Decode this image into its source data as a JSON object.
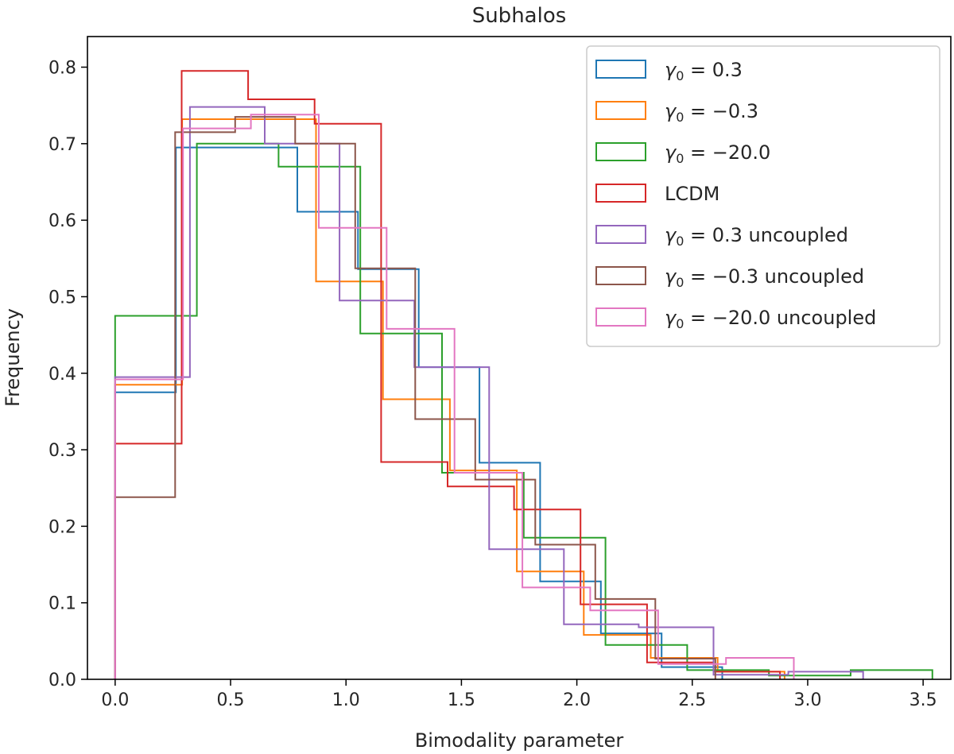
{
  "chart_data": {
    "type": "histogram-step",
    "title": "Subhalos",
    "xlabel": "Bimodality parameter",
    "ylabel": "Frequency",
    "xlim": [
      -0.12,
      3.62
    ],
    "ylim": [
      0.0,
      0.84
    ],
    "xticks": [
      0.0,
      0.5,
      1.0,
      1.5,
      2.0,
      2.5,
      3.0,
      3.5
    ],
    "xtick_labels": [
      "0.0",
      "0.5",
      "1.0",
      "1.5",
      "2.0",
      "2.5",
      "3.0",
      "3.5"
    ],
    "yticks": [
      0.0,
      0.1,
      0.2,
      0.3,
      0.4,
      0.5,
      0.6,
      0.7,
      0.8
    ],
    "ytick_labels": [
      "0.0",
      "0.1",
      "0.2",
      "0.3",
      "0.4",
      "0.5",
      "0.6",
      "0.7",
      "0.8"
    ],
    "legend_position": "upper-right",
    "series": [
      {
        "name": "γ0 = 0.3",
        "label_main": "γ",
        "label_sub": "0",
        "label_rest": " = 0.3",
        "color": "#1f77b4",
        "edges": [
          0.0,
          0.263,
          0.526,
          0.789,
          1.052,
          1.315,
          1.578,
          1.841,
          2.104,
          2.367,
          2.63
        ],
        "values": [
          0.375,
          0.695,
          0.695,
          0.611,
          0.536,
          0.408,
          0.283,
          0.128,
          0.06,
          0.016
        ]
      },
      {
        "name": "γ0 = −0.3",
        "label_main": "γ",
        "label_sub": "0",
        "label_rest": " = −0.3",
        "color": "#ff7f0e",
        "edges": [
          0.0,
          0.29,
          0.58,
          0.87,
          1.16,
          1.45,
          1.74,
          2.03,
          2.32,
          2.61,
          2.9
        ],
        "values": [
          0.385,
          0.732,
          0.732,
          0.52,
          0.366,
          0.273,
          0.141,
          0.058,
          0.028,
          0.01
        ]
      },
      {
        "name": "γ0 = −20.0",
        "label_main": "γ",
        "label_sub": "0",
        "label_rest": " = −20.0",
        "color": "#2ca02c",
        "edges": [
          0.0,
          0.354,
          0.708,
          1.062,
          1.416,
          1.77,
          2.124,
          2.478,
          2.832,
          3.186,
          3.54
        ],
        "values": [
          0.475,
          0.7,
          0.67,
          0.452,
          0.27,
          0.185,
          0.045,
          0.012,
          0.005,
          0.012
        ]
      },
      {
        "name": "LCDM",
        "label_main": "LCDM",
        "label_sub": "",
        "label_rest": "",
        "color": "#d62728",
        "edges": [
          0.0,
          0.288,
          0.576,
          0.864,
          1.152,
          1.44,
          1.728,
          2.016,
          2.304,
          2.592,
          2.88
        ],
        "values": [
          0.308,
          0.795,
          0.758,
          0.726,
          0.284,
          0.252,
          0.222,
          0.098,
          0.022,
          0.01
        ]
      },
      {
        "name": "γ0 = 0.3 uncoupled",
        "label_main": "γ",
        "label_sub": "0",
        "label_rest": " = 0.3 uncoupled",
        "color": "#9467bd",
        "edges": [
          0.0,
          0.324,
          0.648,
          0.972,
          1.296,
          1.62,
          1.944,
          2.268,
          2.592,
          2.916,
          3.24
        ],
        "values": [
          0.395,
          0.748,
          0.7,
          0.495,
          0.408,
          0.17,
          0.072,
          0.068,
          0.006,
          0.01
        ]
      },
      {
        "name": "γ0 = −0.3 uncoupled",
        "label_main": "γ",
        "label_sub": "0",
        "label_rest": " = −0.3 uncoupled",
        "color": "#8c564b",
        "edges": [
          0.0,
          0.26,
          0.52,
          0.78,
          1.04,
          1.3,
          1.56,
          1.82,
          2.08,
          2.34,
          2.6
        ],
        "values": [
          0.238,
          0.715,
          0.735,
          0.7,
          0.537,
          0.34,
          0.261,
          0.176,
          0.105,
          0.027
        ]
      },
      {
        "name": "γ0 = −20.0 uncoupled",
        "label_main": "γ",
        "label_sub": "0",
        "label_rest": " = −20.0 uncoupled",
        "color": "#e377c2",
        "edges": [
          0.0,
          0.294,
          0.588,
          0.882,
          1.176,
          1.47,
          1.764,
          2.058,
          2.352,
          2.646,
          2.94
        ],
        "values": [
          0.392,
          0.72,
          0.738,
          0.59,
          0.458,
          0.27,
          0.12,
          0.09,
          0.02,
          0.028
        ]
      }
    ]
  }
}
